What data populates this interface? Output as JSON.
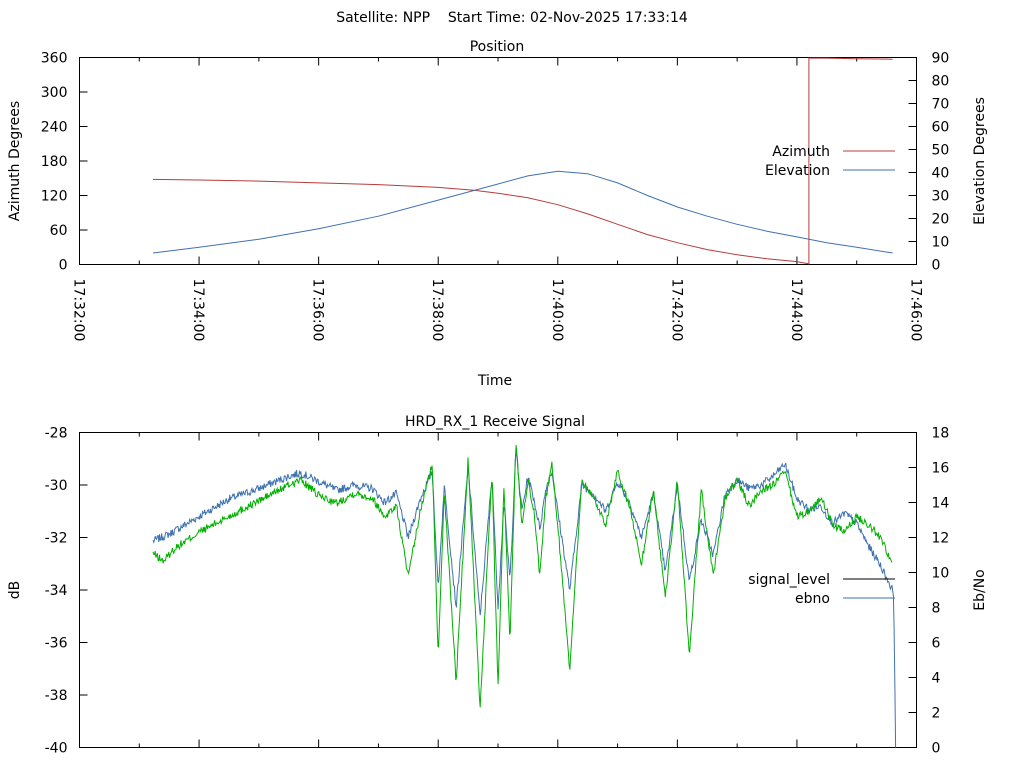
{
  "page_title": "Satellite: NPP    Start Time: 02-Nov-2025 17:33:14",
  "chart_data": [
    {
      "type": "line",
      "title": "Position",
      "xlabel": "Time",
      "ylabel": "Azimuth Degrees",
      "y2label": "Elevation Degrees",
      "xlim_minutes_after_1732": [
        0,
        14
      ],
      "ylim": [
        0,
        360
      ],
      "y2lim": [
        0,
        90
      ],
      "x_tick_labels": [
        "17:32:00",
        "17:34:00",
        "17:36:00",
        "17:38:00",
        "17:40:00",
        "17:42:00",
        "17:44:00",
        "17:46:00"
      ],
      "y_tick_labels": [
        "0",
        "60",
        "120",
        "180",
        "240",
        "300",
        "360"
      ],
      "y2_tick_labels": [
        "0",
        "10",
        "20",
        "30",
        "40",
        "50",
        "60",
        "70",
        "80",
        "90"
      ],
      "legend": [
        "Azimuth",
        "Elevation"
      ],
      "legend_position": "right",
      "grid": false,
      "colors": {
        "Azimuth": "#b83c3c",
        "Elevation": "#3f72b0"
      },
      "series": [
        {
          "name": "Azimuth",
          "axis": "y",
          "x": [
            1.23,
            2.0,
            3.0,
            4.0,
            5.0,
            6.0,
            6.6,
            7.0,
            7.5,
            8.0,
            8.5,
            9.0,
            9.5,
            10.0,
            10.5,
            11.0,
            11.5,
            12.0,
            12.2,
            12.2,
            12.5,
            13.0,
            13.6
          ],
          "values": [
            148,
            147,
            145,
            142,
            139,
            134,
            129,
            124,
            116,
            104,
            88,
            70,
            52,
            38,
            26,
            17,
            10,
            5,
            1,
            359,
            359,
            358,
            357
          ]
        },
        {
          "name": "Elevation",
          "axis": "y2",
          "x": [
            1.23,
            2.0,
            3.0,
            4.0,
            5.0,
            6.0,
            7.0,
            7.5,
            8.0,
            8.5,
            9.0,
            9.5,
            10.0,
            10.5,
            11.0,
            11.5,
            12.0,
            12.5,
            13.0,
            13.6
          ],
          "values": [
            5,
            7.5,
            11,
            15.5,
            21,
            28,
            35,
            38.5,
            40.5,
            39.5,
            35.5,
            30,
            25,
            21,
            17.5,
            14.5,
            12,
            9.5,
            7.5,
            5
          ]
        }
      ]
    },
    {
      "type": "line",
      "title": "HRD_RX_1 Receive Signal",
      "xlabel": "",
      "ylabel": "dB",
      "y2label": "Eb/No",
      "xlim_minutes_after_1732": [
        0,
        14
      ],
      "ylim": [
        -40,
        -28
      ],
      "y2lim": [
        0,
        18
      ],
      "y_tick_labels": [
        "-40",
        "-38",
        "-36",
        "-34",
        "-32",
        "-30",
        "-28"
      ],
      "y2_tick_labels": [
        "0",
        "2",
        "4",
        "6",
        "8",
        "10",
        "12",
        "14",
        "16",
        "18"
      ],
      "legend": [
        "signal_level",
        "ebno"
      ],
      "legend_position": "right",
      "grid": false,
      "colors": {
        "signal_level_legend": "#000000",
        "signal_level_curve": "#00b000",
        "ebno": "#3f72b0"
      },
      "series": [
        {
          "name": "signal_level",
          "axis": "y",
          "x": [
            1.23,
            1.4,
            1.6,
            2.0,
            2.5,
            3.0,
            3.5,
            3.7,
            4.0,
            4.3,
            4.6,
            4.9,
            5.1,
            5.3,
            5.5,
            5.7,
            5.9,
            6.0,
            6.1,
            6.3,
            6.5,
            6.7,
            6.9,
            7.0,
            7.1,
            7.2,
            7.3,
            7.4,
            7.5,
            7.6,
            7.7,
            7.8,
            7.9,
            8.0,
            8.2,
            8.4,
            8.6,
            8.8,
            9.0,
            9.2,
            9.4,
            9.6,
            9.8,
            10.0,
            10.2,
            10.4,
            10.6,
            10.8,
            11.0,
            11.2,
            11.4,
            11.6,
            11.8,
            12.0,
            12.2,
            12.4,
            12.6,
            12.8,
            13.0,
            13.2,
            13.4,
            13.6
          ],
          "values": [
            -32.6,
            -32.9,
            -32.4,
            -31.8,
            -31.2,
            -30.6,
            -30.0,
            -29.8,
            -30.4,
            -30.7,
            -30.3,
            -30.5,
            -31.2,
            -30.8,
            -33.5,
            -31.0,
            -29.2,
            -36.5,
            -30.2,
            -37.5,
            -29.0,
            -38.5,
            -29.5,
            -37.8,
            -30.0,
            -36.0,
            -28.3,
            -31.5,
            -29.8,
            -31.0,
            -33.5,
            -30.5,
            -29.2,
            -31.5,
            -37.0,
            -29.8,
            -30.5,
            -31.5,
            -29.5,
            -30.8,
            -33.0,
            -30.2,
            -34.3,
            -29.8,
            -36.5,
            -30.2,
            -33.5,
            -30.5,
            -29.8,
            -30.8,
            -30.2,
            -30.0,
            -29.5,
            -31.2,
            -31.0,
            -30.5,
            -31.5,
            -31.8,
            -31.2,
            -31.5,
            -32.0,
            -33.0
          ]
        },
        {
          "name": "ebno",
          "axis": "y2",
          "x": [
            1.23,
            1.5,
            2.0,
            2.5,
            3.0,
            3.5,
            3.7,
            4.0,
            4.3,
            4.6,
            4.9,
            5.1,
            5.3,
            5.5,
            5.7,
            5.9,
            6.0,
            6.1,
            6.3,
            6.5,
            6.7,
            6.9,
            7.0,
            7.1,
            7.2,
            7.3,
            7.4,
            7.5,
            7.6,
            7.7,
            7.8,
            7.9,
            8.0,
            8.2,
            8.4,
            8.6,
            8.8,
            9.0,
            9.2,
            9.4,
            9.6,
            9.8,
            10.0,
            10.2,
            10.4,
            10.6,
            10.8,
            11.0,
            11.2,
            11.4,
            11.6,
            11.8,
            12.0,
            12.2,
            12.4,
            12.6,
            12.8,
            13.0,
            13.2,
            13.4,
            13.6,
            13.62,
            13.65
          ],
          "values": [
            11.8,
            12.2,
            13.2,
            14.2,
            14.8,
            15.5,
            15.7,
            15.2,
            14.7,
            15.0,
            14.8,
            14.0,
            14.5,
            12.0,
            14.2,
            15.8,
            9.0,
            15.0,
            8.0,
            16.0,
            7.5,
            15.5,
            8.0,
            14.0,
            9.5,
            17.0,
            13.5,
            15.5,
            14.2,
            12.5,
            14.8,
            15.8,
            13.5,
            9.0,
            15.0,
            14.5,
            13.5,
            15.2,
            14.0,
            12.0,
            14.5,
            10.0,
            15.0,
            9.5,
            13.0,
            11.0,
            14.5,
            15.3,
            14.8,
            15.0,
            15.5,
            16.2,
            14.2,
            13.6,
            13.8,
            12.8,
            13.4,
            12.8,
            11.5,
            10.4,
            9.0,
            8.5,
            0
          ]
        }
      ]
    }
  ]
}
